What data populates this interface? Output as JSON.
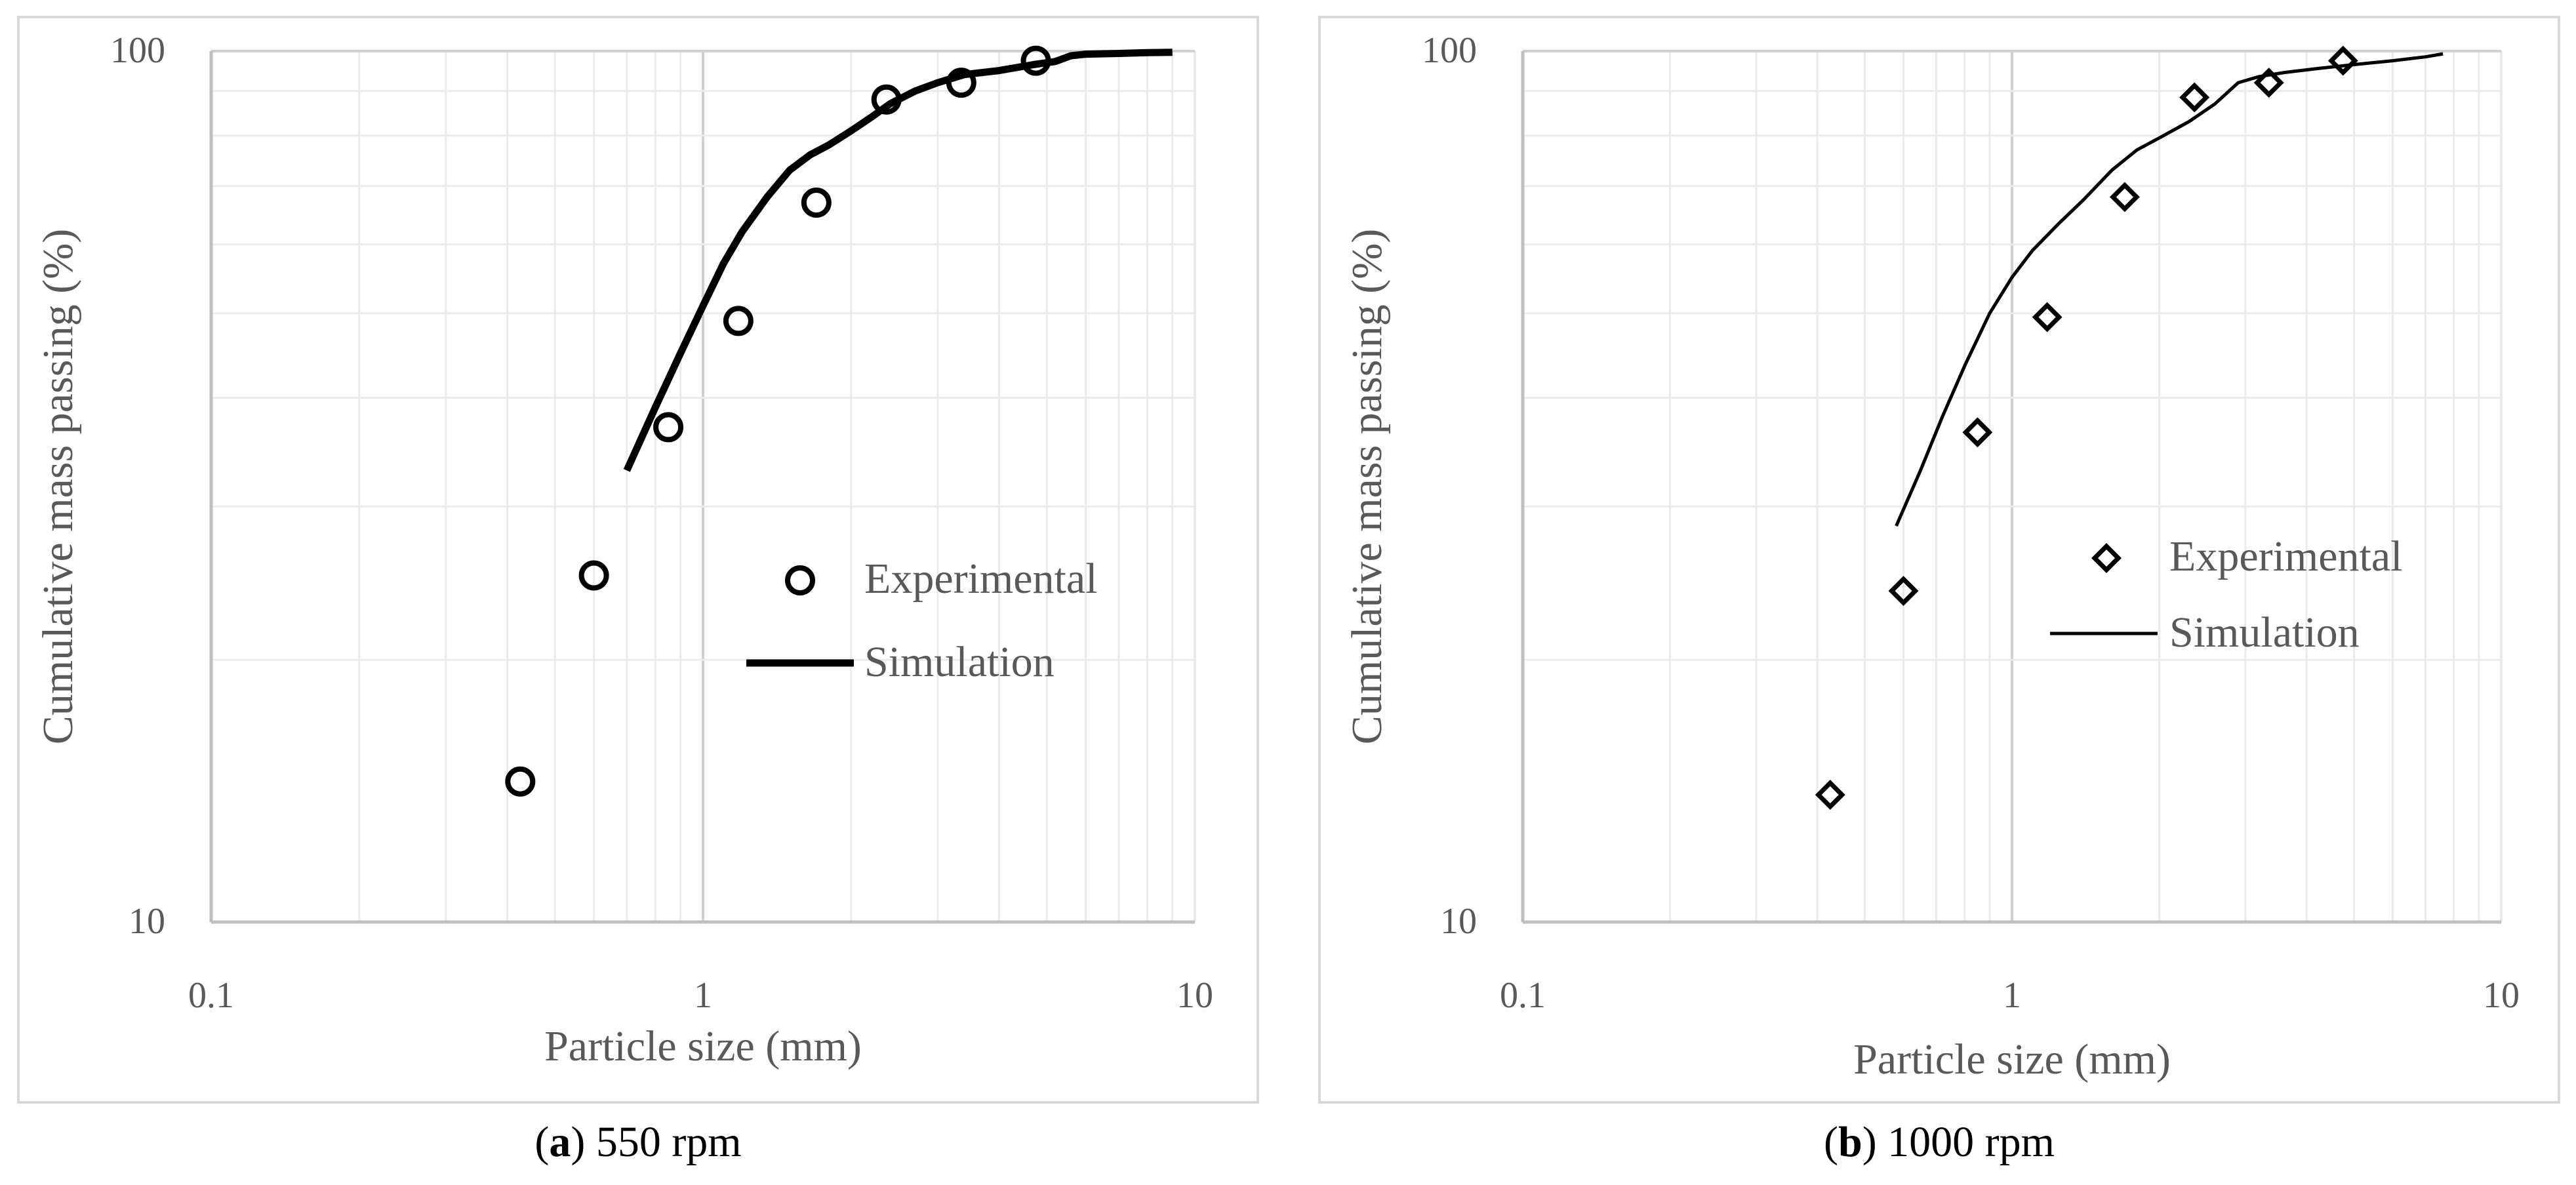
{
  "chart_data": [
    {
      "type": "scatter",
      "caption_label": "a",
      "caption_text": "550 rpm",
      "xlabel": "Particle size (mm)",
      "ylabel": "Cumulative mass passing (%)",
      "xscale": "log",
      "yscale": "log",
      "xlim": [
        0.1,
        10
      ],
      "ylim": [
        10,
        100
      ],
      "x_ticks": [
        "0.1",
        "1",
        "10"
      ],
      "y_ticks": [
        "10",
        "100"
      ],
      "grid": true,
      "legend_position": "right",
      "marker": "circle",
      "series": [
        {
          "name": "Experimental",
          "kind": "markers",
          "x": [
            0.425,
            0.6,
            0.85,
            1.18,
            1.7,
            2.36,
            3.35,
            4.75
          ],
          "y": [
            14.5,
            25,
            37,
            49,
            67,
            88,
            92,
            97.5
          ]
        },
        {
          "name": "Simulation",
          "kind": "line",
          "x": [
            0.7,
            0.8,
            0.9,
            1.0,
            1.1,
            1.2,
            1.35,
            1.5,
            1.65,
            1.8,
            2.0,
            2.2,
            2.4,
            2.7,
            3.0,
            3.4,
            4.0,
            4.7,
            5.2,
            5.6,
            6.0,
            7.0,
            8.0,
            9.0
          ],
          "y": [
            33,
            39,
            45,
            51,
            57,
            62,
            68,
            73,
            76,
            78,
            81,
            84,
            87,
            90,
            92,
            94,
            95,
            96.5,
            97.3,
            98.8,
            99.2,
            99.4,
            99.6,
            99.7
          ]
        }
      ]
    },
    {
      "type": "scatter",
      "caption_label": "b",
      "caption_text": "1000 rpm",
      "xlabel": "Particle size (mm)",
      "ylabel": "Cumulative mass passing (%)",
      "xscale": "log",
      "yscale": "log",
      "xlim": [
        0.1,
        10
      ],
      "ylim": [
        10,
        100
      ],
      "x_ticks": [
        "0.1",
        "1",
        "10"
      ],
      "y_ticks": [
        "10",
        "100"
      ],
      "grid": true,
      "legend_position": "right",
      "marker": "diamond",
      "series": [
        {
          "name": "Experimental",
          "kind": "markers",
          "x": [
            0.425,
            0.6,
            0.85,
            1.18,
            1.7,
            2.36,
            3.35,
            4.75
          ],
          "y": [
            14,
            24,
            36.5,
            49.5,
            68,
            88.5,
            92,
            97.5
          ]
        },
        {
          "name": "Simulation",
          "kind": "line",
          "x": [
            0.58,
            0.65,
            0.72,
            0.8,
            0.9,
            1.0,
            1.1,
            1.25,
            1.4,
            1.6,
            1.8,
            2.0,
            2.3,
            2.6,
            2.9,
            3.2,
            3.6,
            4.2,
            5.0,
            6.0,
            7.0,
            7.6
          ],
          "y": [
            28.5,
            33,
            38,
            43.5,
            50,
            55,
            59,
            63.5,
            67.5,
            73,
            77,
            79.5,
            83,
            87,
            92,
            93.5,
            94.5,
            95.5,
            96.5,
            97.5,
            98.5,
            99.3
          ]
        }
      ]
    }
  ]
}
